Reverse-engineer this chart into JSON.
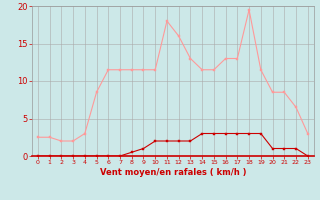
{
  "hours": [
    0,
    1,
    2,
    3,
    4,
    5,
    6,
    7,
    8,
    9,
    10,
    11,
    12,
    13,
    14,
    15,
    16,
    17,
    18,
    19,
    20,
    21,
    22,
    23
  ],
  "wind_avg": [
    0,
    0,
    0,
    0,
    0,
    0,
    0,
    0,
    0.5,
    1,
    2,
    2,
    2,
    2,
    3,
    3,
    3,
    3,
    3,
    3,
    1,
    1,
    1,
    0
  ],
  "wind_gust": [
    2.5,
    2.5,
    2,
    2,
    3,
    8.5,
    11.5,
    11.5,
    11.5,
    11.5,
    11.5,
    18,
    16,
    13,
    11.5,
    11.5,
    13,
    13,
    19.5,
    11.5,
    8.5,
    8.5,
    6.5,
    3
  ],
  "bg_color": "#cce8e8",
  "grid_color": "#aaaaaa",
  "line_avg_color": "#cc0000",
  "line_gust_color": "#ff9999",
  "marker_size": 2,
  "xlabel": "Vent moyen/en rafales ( km/h )",
  "xlabel_color": "#cc0000",
  "tick_color": "#cc0000",
  "ytick_color": "#cc0000",
  "ylim": [
    0,
    20
  ],
  "yticks": [
    0,
    5,
    10,
    15,
    20
  ],
  "xlim": [
    -0.5,
    23.5
  ]
}
